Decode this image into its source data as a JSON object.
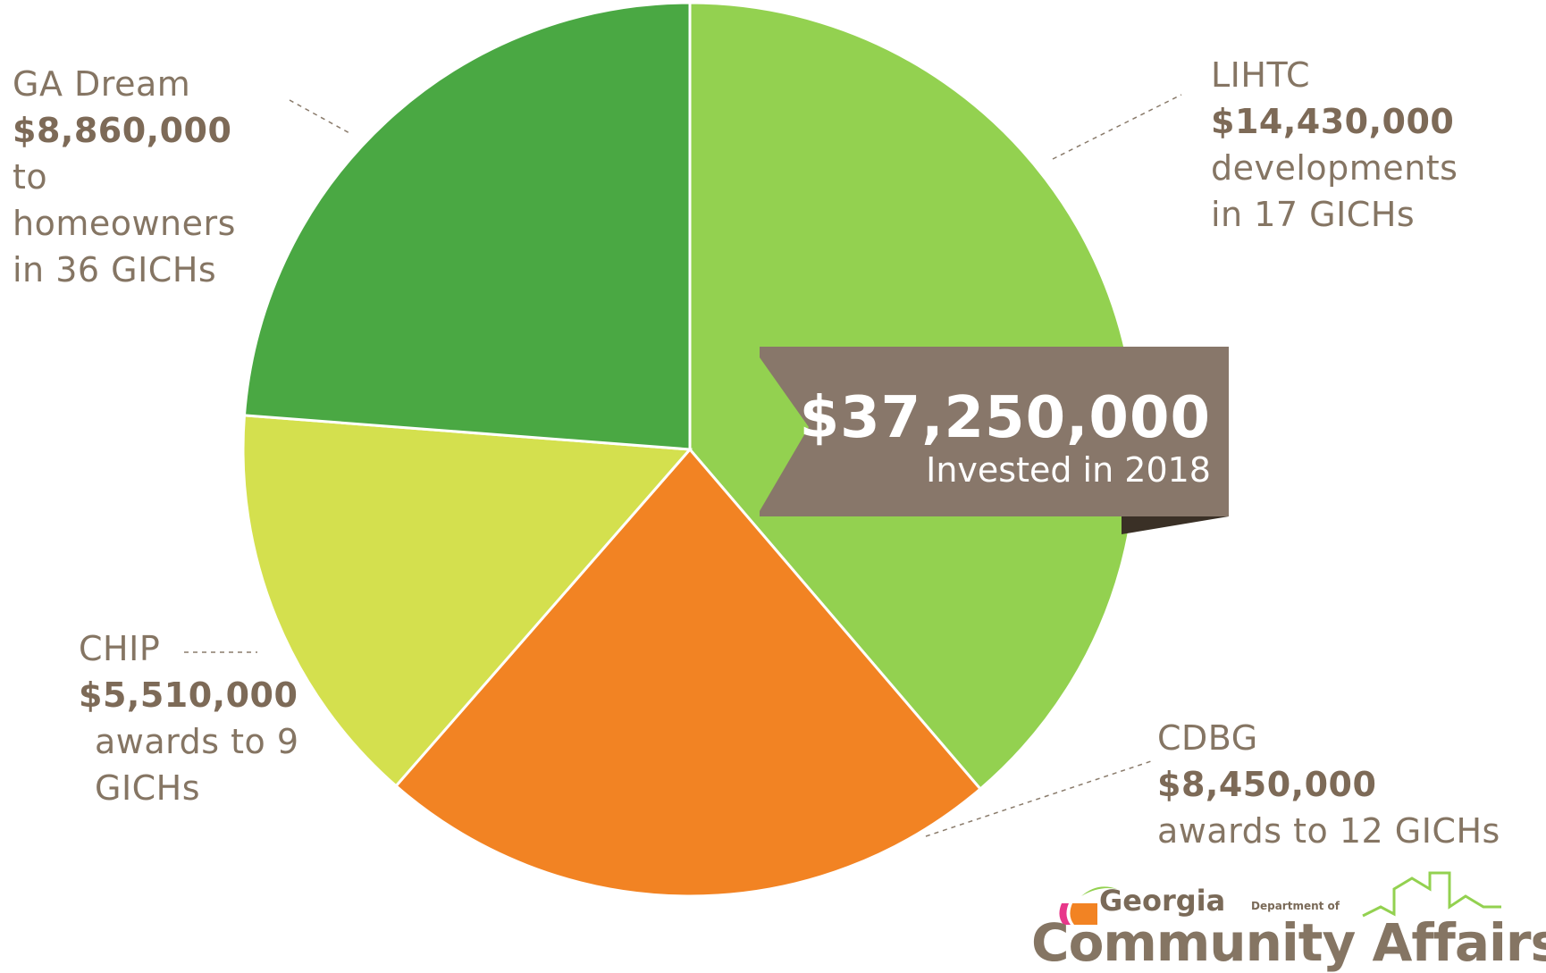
{
  "chart_data": {
    "type": "pie",
    "categories": [
      "LIHTC",
      "CDBG",
      "CHIP",
      "GA Dream"
    ],
    "values": [
      14430000,
      8450000,
      5510000,
      8860000
    ],
    "colors": [
      "#93d150",
      "#f28323",
      "#d4e04e",
      "#4aa843"
    ],
    "start_angle": "12 o'clock, clockwise",
    "legend": "none (callout labels)",
    "total": "$37,250,000",
    "total_caption": "Invested in 2018",
    "labels": [
      {
        "name": "LIHTC",
        "amount": "$14,430,000",
        "lines": [
          "developments",
          "in 17 GICHs"
        ]
      },
      {
        "name": "GA Dream",
        "amount": "$8,860,000",
        "lines": [
          "to",
          "homeowners",
          "in 36 GICHs"
        ]
      },
      {
        "name": "CHIP",
        "amount": "$5,510,000",
        "lines": [
          "awards to 9",
          "GICHs"
        ]
      },
      {
        "name": "CDBG",
        "amount": "$8,450,000",
        "lines": [
          "awards to 12 GICHs"
        ]
      }
    ]
  },
  "logo": {
    "georgia": "Georgia",
    "dept": "Department of",
    "name": "Community Affairs",
    "colors": [
      "#e8378a",
      "#f28323",
      "#93d150",
      "#857563"
    ]
  }
}
